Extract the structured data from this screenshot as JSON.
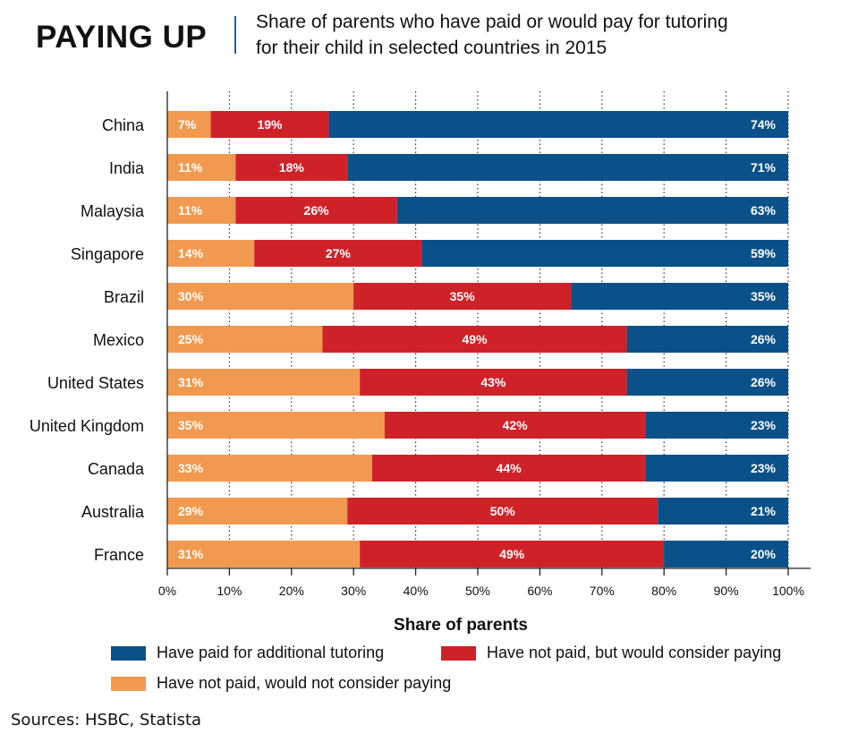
{
  "header": {
    "title": "PAYING UP",
    "subtitle_line1": "Share of parents who have paid or would pay for tutoring",
    "subtitle_line2": "for their child in selected countries in 2015"
  },
  "source": "Sources: HSBC, Statista",
  "colors": {
    "paid": "#0b5189",
    "would_consider": "#cf2228",
    "would_not": "#f19a4f"
  },
  "chart_data": {
    "type": "bar",
    "orientation": "horizontal",
    "stacked": true,
    "categories": [
      "China",
      "India",
      "Malaysia",
      "Singapore",
      "Brazil",
      "Mexico",
      "United States",
      "United Kingdom",
      "Canada",
      "Australia",
      "France"
    ],
    "series": [
      {
        "name": "Have not paid, would not consider paying",
        "color": "#f19a4f",
        "values": [
          7,
          11,
          11,
          14,
          30,
          25,
          31,
          35,
          33,
          29,
          31
        ]
      },
      {
        "name": "Have not paid, but would consider paying",
        "color": "#cf2228",
        "values": [
          19,
          18,
          26,
          27,
          35,
          49,
          43,
          42,
          44,
          50,
          49
        ]
      },
      {
        "name": "Have paid for additional tutoring",
        "color": "#0b5189",
        "values": [
          74,
          71,
          63,
          59,
          35,
          26,
          26,
          23,
          23,
          21,
          20
        ]
      }
    ],
    "xlabel": "Share of parents",
    "xlim": [
      0,
      100
    ],
    "xticks": [
      "0%",
      "10%",
      "20%",
      "30%",
      "40%",
      "50%",
      "60%",
      "70%",
      "80%",
      "90%",
      "100%"
    ],
    "grid": "vertical dotted",
    "legend": [
      "Have paid for additional tutoring",
      "Have not paid, but would consider paying",
      "Have not paid, would not consider paying"
    ]
  }
}
